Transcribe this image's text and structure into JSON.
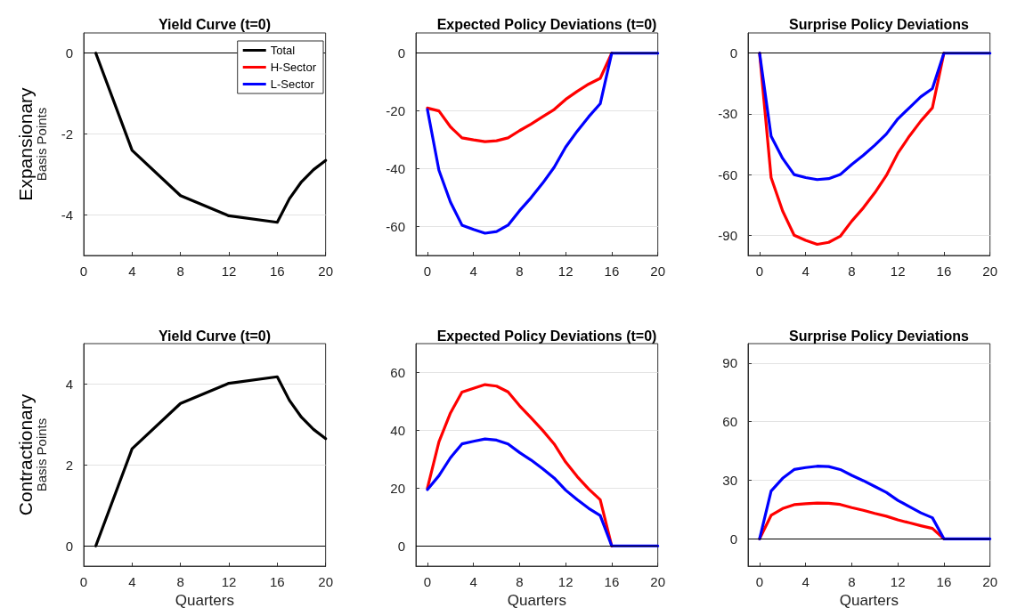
{
  "chart_data": [
    {
      "type": "line",
      "title": "Yield Curve (t=0)",
      "ylabel": "Basis Points",
      "annotations": [
        "Expansionary"
      ],
      "x": [
        1,
        4,
        8,
        12,
        16,
        17,
        18,
        19,
        20
      ],
      "xlim": [
        0,
        20
      ],
      "xticks": [
        0,
        4,
        8,
        12,
        16,
        20
      ],
      "ylim": [
        -5,
        0.5
      ],
      "yticks": [
        -4,
        -2,
        0
      ],
      "grid": "y",
      "legend": "top right",
      "marker": "none",
      "line_style": "solid",
      "ref_lines": [
        {
          "axis": "y",
          "value": 0,
          "color": "#000000"
        }
      ],
      "series": [
        {
          "name": "Total",
          "color": "#000000",
          "values": [
            0,
            -2.4,
            -3.52,
            -4.02,
            -4.18,
            -3.6,
            -3.18,
            -2.88,
            -2.65
          ]
        },
        {
          "name": "H-Sector",
          "color": "#ff0000",
          "values": [
            null,
            null,
            null,
            null,
            null,
            null,
            null,
            null,
            null
          ]
        },
        {
          "name": "L-Sector",
          "color": "#0000ff",
          "values": [
            null,
            null,
            null,
            null,
            null,
            null,
            null,
            null,
            null
          ]
        }
      ]
    },
    {
      "type": "line",
      "title": "Expected Policy Deviations (t=0)",
      "x": [
        0,
        1,
        2,
        3,
        4,
        5,
        6,
        7,
        8,
        9,
        10,
        11,
        12,
        13,
        14,
        15,
        16,
        17,
        18,
        19,
        20
      ],
      "xlim": [
        -1,
        20
      ],
      "xticks": [
        0,
        4,
        8,
        12,
        16,
        20
      ],
      "ylim": [
        -70,
        7
      ],
      "yticks": [
        -60,
        -40,
        -20,
        0
      ],
      "grid": "y",
      "marker": "none",
      "line_style": "solid",
      "ref_lines": [
        {
          "axis": "y",
          "value": 0,
          "color": "#000000"
        }
      ],
      "series": [
        {
          "color": "#ff0000",
          "values": [
            -19,
            -20,
            -25.5,
            -29.3,
            -30,
            -30.6,
            -30.3,
            -29.3,
            -26.8,
            -24.5,
            -22,
            -19.5,
            -16,
            -13.2,
            -10.7,
            -8.7,
            0,
            null,
            null,
            null,
            null
          ]
        },
        {
          "color": "#0000ff",
          "values": [
            -19.5,
            -40.5,
            -51.5,
            -59.5,
            -61,
            -62.3,
            -61.7,
            -59.5,
            -54.5,
            -50,
            -45,
            -39.5,
            -32.5,
            -27,
            -22,
            -17.5,
            0,
            0,
            0,
            0,
            0
          ]
        }
      ]
    },
    {
      "type": "line",
      "title": "Surprise Policy Deviations",
      "x": [
        0,
        1,
        2,
        3,
        4,
        5,
        6,
        7,
        8,
        9,
        10,
        11,
        12,
        13,
        14,
        15,
        16,
        17,
        18,
        19,
        20
      ],
      "xlim": [
        -1,
        20
      ],
      "xticks": [
        0,
        4,
        8,
        12,
        16,
        20
      ],
      "ylim": [
        -100,
        10
      ],
      "yticks": [
        -90,
        -60,
        -30,
        0
      ],
      "grid": "y",
      "marker": "none",
      "line_style": "solid",
      "ref_lines": [
        {
          "axis": "y",
          "value": 0,
          "color": "#000000"
        }
      ],
      "series": [
        {
          "color": "#ff0000",
          "values": [
            0,
            -61.5,
            -78,
            -90,
            -92.5,
            -94.5,
            -93.5,
            -90.5,
            -83,
            -76.5,
            -69,
            -60.5,
            -49.5,
            -41,
            -33.5,
            -27,
            0,
            null,
            null,
            null,
            null
          ]
        },
        {
          "color": "#0000ff",
          "values": [
            0,
            -41,
            -52,
            -60,
            -61.5,
            -62.5,
            -62,
            -60,
            -55,
            -50.5,
            -45.5,
            -40,
            -32.5,
            -27,
            -21.5,
            -17.5,
            0,
            0,
            0,
            0,
            0
          ]
        }
      ]
    },
    {
      "type": "line",
      "title": "Yield Curve (t=0)",
      "xlabel": "Quarters",
      "ylabel": "Basis Points",
      "annotations": [
        "Contractionary"
      ],
      "x": [
        1,
        4,
        8,
        12,
        16,
        17,
        18,
        19,
        20
      ],
      "xlim": [
        0,
        20
      ],
      "xticks": [
        0,
        4,
        8,
        12,
        16,
        20
      ],
      "ylim": [
        -0.5,
        5
      ],
      "yticks": [
        0,
        2,
        4
      ],
      "grid": "y",
      "marker": "none",
      "line_style": "solid",
      "ref_lines": [
        {
          "axis": "y",
          "value": 0,
          "color": "#000000"
        }
      ],
      "series": [
        {
          "color": "#000000",
          "values": [
            0,
            2.4,
            3.52,
            4.02,
            4.18,
            3.6,
            3.18,
            2.88,
            2.65
          ]
        }
      ]
    },
    {
      "type": "line",
      "title": "Expected Policy Deviations (t=0)",
      "xlabel": "Quarters",
      "x": [
        0,
        1,
        2,
        3,
        4,
        5,
        6,
        7,
        8,
        9,
        10,
        11,
        12,
        13,
        14,
        15,
        16,
        17,
        18,
        19,
        20
      ],
      "xlim": [
        -1,
        20
      ],
      "xticks": [
        0,
        4,
        8,
        12,
        16,
        20
      ],
      "ylim": [
        -7,
        70
      ],
      "yticks": [
        0,
        20,
        40,
        60
      ],
      "grid": "y",
      "marker": "none",
      "line_style": "solid",
      "ref_lines": [
        {
          "axis": "y",
          "value": 0,
          "color": "#000000"
        }
      ],
      "series": [
        {
          "color": "#ff0000",
          "values": [
            20,
            36,
            46,
            53.2,
            54.5,
            55.8,
            55.3,
            53.3,
            48.5,
            44.3,
            40,
            35.3,
            29,
            24,
            19.7,
            16,
            0,
            null,
            null,
            null,
            null
          ]
        },
        {
          "color": "#0000ff",
          "values": [
            19.5,
            24.3,
            30.5,
            35.3,
            36.2,
            37,
            36.6,
            35.3,
            32.3,
            29.7,
            26.7,
            23.5,
            19.3,
            16,
            13,
            10.5,
            0,
            0,
            0,
            0,
            0
          ]
        }
      ]
    },
    {
      "type": "line",
      "title": "Surprise Policy Deviations",
      "xlabel": "Quarters",
      "x": [
        0,
        1,
        2,
        3,
        4,
        5,
        6,
        7,
        8,
        9,
        10,
        11,
        12,
        13,
        14,
        15,
        16,
        17,
        18,
        19,
        20
      ],
      "xlim": [
        -1,
        20
      ],
      "xticks": [
        0,
        4,
        8,
        12,
        16,
        20
      ],
      "ylim": [
        -14,
        100
      ],
      "yticks": [
        0,
        30,
        60,
        90
      ],
      "grid": "y",
      "marker": "none",
      "line_style": "solid",
      "ref_lines": [
        {
          "axis": "y",
          "value": 0,
          "color": "#000000"
        }
      ],
      "series": [
        {
          "color": "#ff0000",
          "values": [
            0,
            12,
            15.5,
            17.5,
            18,
            18.3,
            18.2,
            17.6,
            16,
            14.6,
            13,
            11.6,
            9.7,
            8.2,
            6.7,
            5.3,
            0,
            null,
            null,
            null,
            null
          ]
        },
        {
          "color": "#0000ff",
          "values": [
            0,
            24.5,
            31,
            35.5,
            36.5,
            37.2,
            37,
            35.5,
            32.5,
            29.8,
            26.8,
            23.8,
            19.7,
            16.5,
            13.3,
            10.8,
            0,
            0,
            0,
            0,
            0
          ]
        }
      ]
    }
  ]
}
